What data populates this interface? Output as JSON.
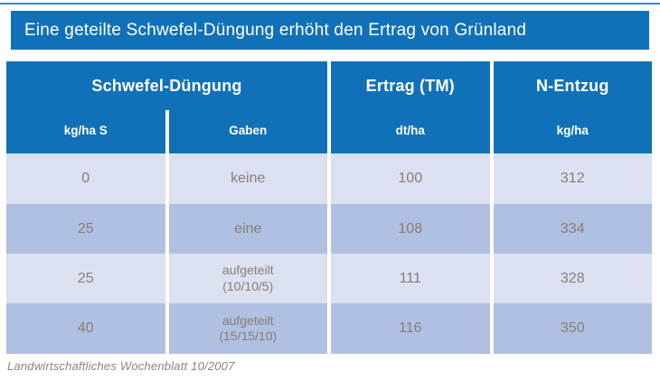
{
  "colors": {
    "brand_blue": "#1171b8",
    "top_rule_blue": "#3b87c4",
    "row_light": "#dbe1f1",
    "row_dark": "#b0c0e2",
    "body_text": "#867e76",
    "header_text": "#ffffff"
  },
  "title_bar": {
    "text": "Eine geteilte Schwefel-Düngung erhöht den Ertrag von Grünland"
  },
  "table": {
    "group_headers": [
      {
        "label": "Schwefel-Düngung"
      },
      {
        "label": "Ertrag (TM)"
      },
      {
        "label": "N-Entzug"
      }
    ],
    "sub_headers": {
      "col1": "kg/ha S",
      "col2": "Gaben",
      "col3": "dt/ha",
      "col4": "kg/ha"
    },
    "rows": [
      {
        "kg_ha_s": "0",
        "gaben": "keine",
        "gaben_detail": "",
        "ertrag": "100",
        "n_entzug": "312"
      },
      {
        "kg_ha_s": "25",
        "gaben": "eine",
        "gaben_detail": "",
        "ertrag": "108",
        "n_entzug": "334"
      },
      {
        "kg_ha_s": "25",
        "gaben": "aufgeteilt",
        "gaben_detail": "(10/10/5)",
        "ertrag": "111",
        "n_entzug": "328"
      },
      {
        "kg_ha_s": "40",
        "gaben": "aufgeteilt",
        "gaben_detail": "(15/15/10)",
        "ertrag": "116",
        "n_entzug": "350"
      }
    ]
  },
  "source": "Landwirtschaftliches Wochenblatt 10/2007",
  "chart_data": {
    "type": "table",
    "title": "Eine geteilte Schwefel-Düngung erhöht den Ertrag von Grünland",
    "column_groups": [
      "Schwefel-Düngung",
      "Ertrag (TM)",
      "N-Entzug"
    ],
    "columns": [
      "Schwefel-Düngung kg/ha S",
      "Schwefel-Düngung Gaben",
      "Ertrag (TM) dt/ha",
      "N-Entzug kg/ha"
    ],
    "rows": [
      [
        "0",
        "keine",
        100,
        312
      ],
      [
        "25",
        "eine",
        108,
        334
      ],
      [
        "25",
        "aufgeteilt (10/10/5)",
        111,
        328
      ],
      [
        "40",
        "aufgeteilt (15/15/10)",
        116,
        350
      ]
    ],
    "source": "Landwirtschaftliches Wochenblatt 10/2007"
  }
}
